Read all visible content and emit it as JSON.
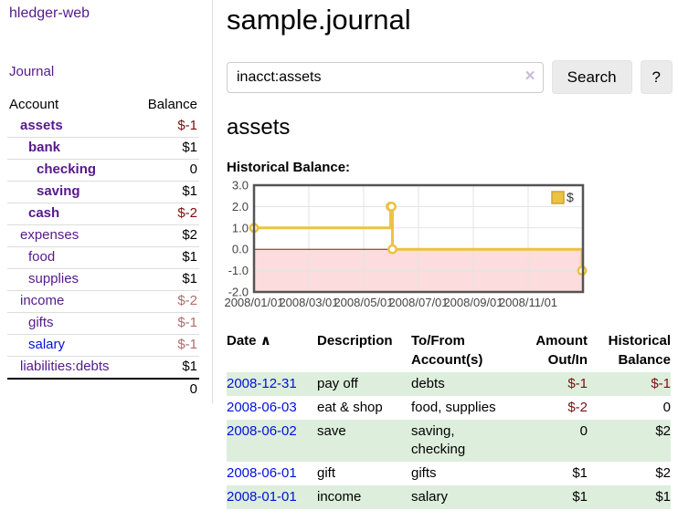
{
  "brand": "hledger-web",
  "sidebar": {
    "journal_link": "Journal",
    "header": {
      "account": "Account",
      "balance": "Balance"
    },
    "accounts": [
      {
        "name": "assets",
        "depth": 1,
        "balance": "$-1",
        "bold": true,
        "balance_tone": "neg-strong"
      },
      {
        "name": "bank",
        "depth": 2,
        "balance": "$1",
        "bold": true,
        "balance_tone": ""
      },
      {
        "name": "checking",
        "depth": 3,
        "balance": "0",
        "bold": true,
        "balance_tone": ""
      },
      {
        "name": "saving",
        "depth": 3,
        "balance": "$1",
        "bold": true,
        "balance_tone": ""
      },
      {
        "name": "cash",
        "depth": 2,
        "balance": "$-2",
        "bold": true,
        "balance_tone": "neg-strong"
      },
      {
        "name": "expenses",
        "depth": 1,
        "balance": "$2",
        "bold": false,
        "balance_tone": ""
      },
      {
        "name": "food",
        "depth": 2,
        "balance": "$1",
        "bold": false,
        "balance_tone": ""
      },
      {
        "name": "supplies",
        "depth": 2,
        "balance": "$1",
        "bold": false,
        "balance_tone": ""
      },
      {
        "name": "income",
        "depth": 1,
        "balance": "$-2",
        "bold": false,
        "balance_tone": "neg-muted"
      },
      {
        "name": "gifts",
        "depth": 2,
        "balance": "$-1",
        "bold": false,
        "balance_tone": "neg-muted"
      },
      {
        "name": "salary",
        "depth": 2,
        "balance": "$-1",
        "bold": false,
        "balance_tone": "neg-muted",
        "link_blue": true
      },
      {
        "name": "liabilities:debts",
        "depth": 1,
        "balance": "$1",
        "bold": false,
        "balance_tone": ""
      }
    ],
    "total": "0"
  },
  "main": {
    "title": "sample.journal",
    "search": {
      "value": "inacct:assets",
      "clear_icon": "×",
      "search_button": "Search",
      "help_button": "?"
    },
    "account_heading": "assets",
    "chart_title": "Historical Balance:"
  },
  "chart_data": {
    "type": "line",
    "mode": "steps",
    "title": "Historical Balance of assets",
    "series": [
      {
        "name": "$",
        "color": "#edc240",
        "points": [
          [
            "2008-01-01",
            1.0
          ],
          [
            "2008-06-01",
            2.0
          ],
          [
            "2008-06-02",
            2.0
          ],
          [
            "2008-06-03",
            0.0
          ],
          [
            "2008-12-31",
            -1.0
          ]
        ]
      }
    ],
    "x_range": [
      "2008-01-01",
      "2009-01-01"
    ],
    "x_ticks": [
      "2008/01/01",
      "2008/03/01",
      "2008/05/01",
      "2008/07/01",
      "2008/09/01",
      "2008/11/01"
    ],
    "y_ticks": [
      "3.0",
      "2.0",
      "1.0",
      "0.0",
      "-1.0",
      "-2.0"
    ],
    "ylim": [
      -2,
      3
    ],
    "grid": true,
    "legend": {
      "label": "$",
      "position": "top-right"
    },
    "colors": {
      "line": "#edc240",
      "marker_fill": "#ffffff",
      "legend_box_border": "#c9a42f",
      "negative_region": "#fcdcdc",
      "zero_line": "#8b1a1a",
      "gridline": "#e3e3e3",
      "border": "#545454",
      "tick_text": "#444444"
    }
  },
  "register": {
    "columns": {
      "date": "Date",
      "sort_icon": "∧",
      "description": "Description",
      "accounts": "To/From Account(s)",
      "amount": "Amount Out/In",
      "balance": "Historical Balance"
    },
    "rows": [
      {
        "date": "2008-12-31",
        "description": "pay off",
        "accounts": "debts",
        "amount": "$-1",
        "amount_neg": true,
        "balance": "$-1",
        "balance_neg": true
      },
      {
        "date": "2008-06-03",
        "description": "eat & shop",
        "accounts": "food, supplies",
        "amount": "$-2",
        "amount_neg": true,
        "balance": "0",
        "balance_neg": false
      },
      {
        "date": "2008-06-02",
        "description": "save",
        "accounts": "saving, checking",
        "amount": "0",
        "amount_neg": false,
        "balance": "$2",
        "balance_neg": false
      },
      {
        "date": "2008-06-01",
        "description": "gift",
        "accounts": "gifts",
        "amount": "$1",
        "amount_neg": false,
        "balance": "$2",
        "balance_neg": false
      },
      {
        "date": "2008-01-01",
        "description": "income",
        "accounts": "salary",
        "amount": "$1",
        "amount_neg": false,
        "balance": "$1",
        "balance_neg": false
      }
    ]
  }
}
